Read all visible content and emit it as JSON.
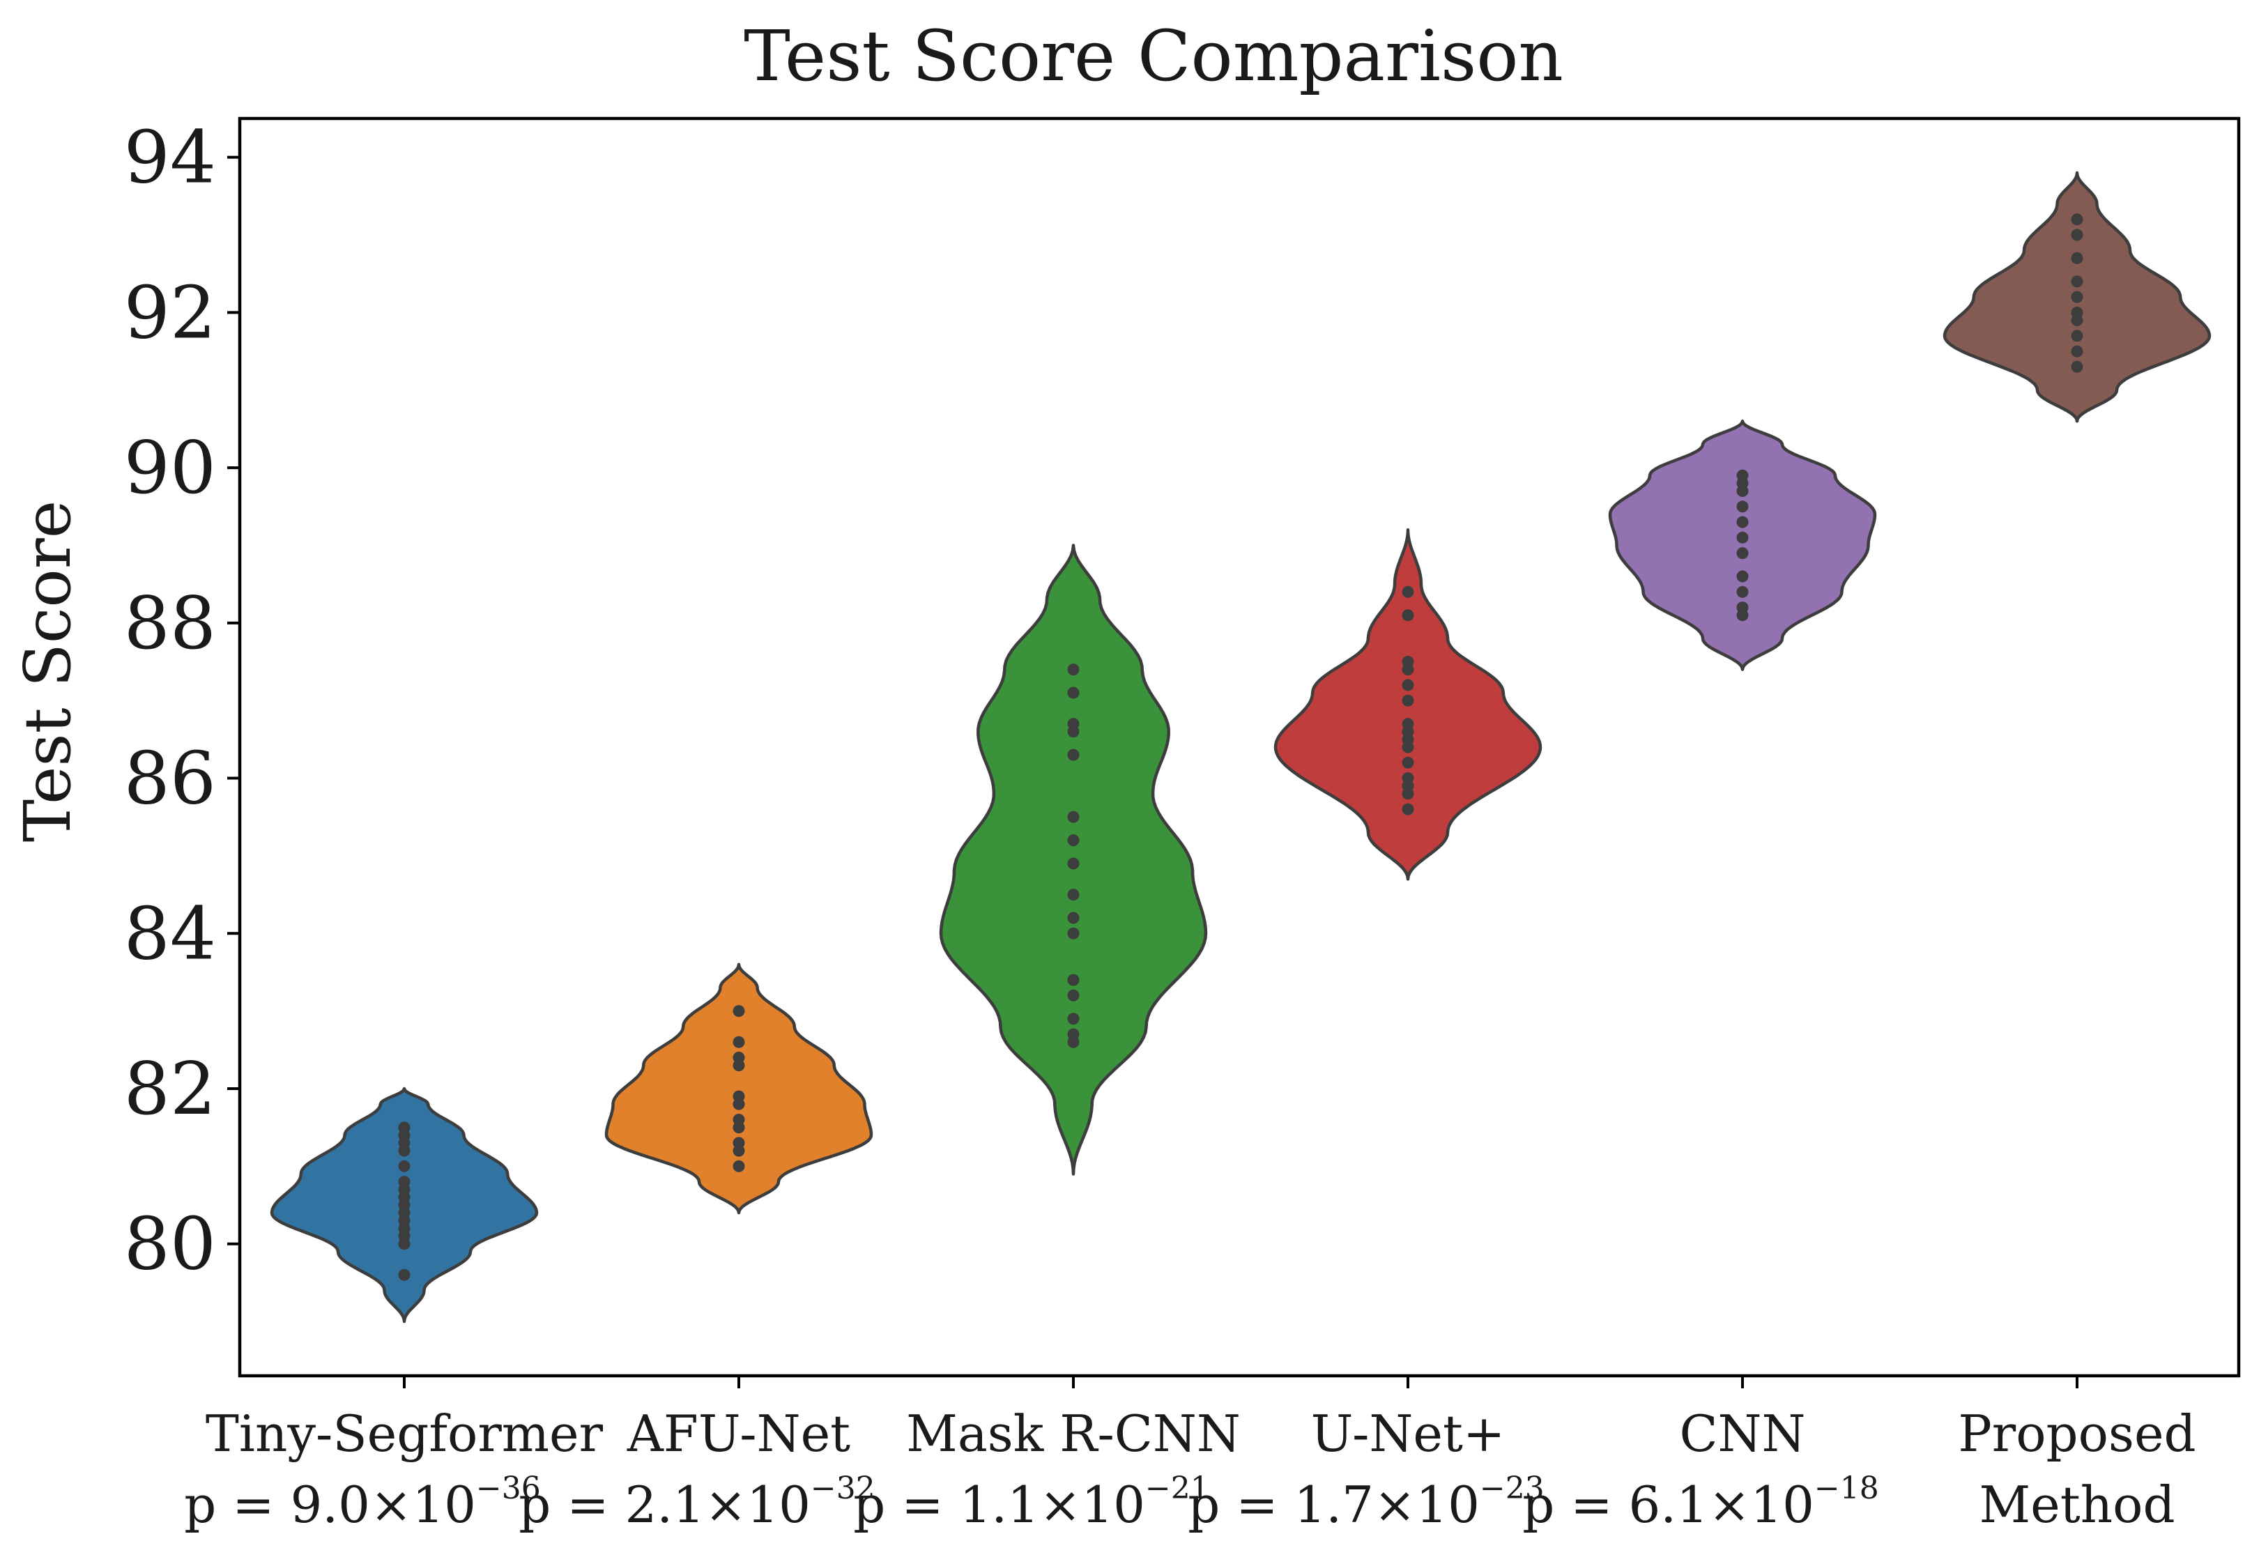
{
  "chart_data": {
    "type": "violin",
    "title": "Test Score Comparison",
    "xlabel": "",
    "ylabel": "Test Score",
    "ylim": [
      78.3,
      94.5
    ],
    "yticks": [
      "80",
      "82",
      "84",
      "86",
      "88",
      "90",
      "92",
      "94"
    ],
    "grid": false,
    "legend": "none",
    "categories": [
      "Tiny-Segformer",
      "AFU-Net",
      "Mask R-CNN",
      "U-Net+",
      "CNN",
      "Proposed"
    ],
    "category_second_lines": {
      "5": "Method"
    },
    "pvalues": [
      {
        "base": "p = 9.0×10",
        "exp": "−36"
      },
      {
        "base": "p = 2.1×10",
        "exp": "−32"
      },
      {
        "base": "p = 1.1×10",
        "exp": "−21"
      },
      {
        "base": "p = 1.7×10",
        "exp": "−23"
      },
      {
        "base": "p = 6.1×10",
        "exp": "−18"
      },
      null
    ],
    "series": [
      {
        "category": "Tiny-Segformer",
        "color": "#3274a1",
        "range": [
          79.0,
          82.0
        ],
        "profile": [
          [
            79.0,
            0.0
          ],
          [
            79.4,
            0.15
          ],
          [
            79.9,
            0.5
          ],
          [
            80.4,
            1.0
          ],
          [
            80.9,
            0.78
          ],
          [
            81.4,
            0.45
          ],
          [
            81.8,
            0.18
          ],
          [
            82.0,
            0.0
          ]
        ],
        "points": [
          79.6,
          80.0,
          80.1,
          80.2,
          80.3,
          80.4,
          80.5,
          80.6,
          80.7,
          80.8,
          81.0,
          81.2,
          81.3,
          81.4,
          81.5
        ]
      },
      {
        "category": "AFU-Net",
        "color": "#e1812c",
        "range": [
          80.4,
          83.6
        ],
        "profile": [
          [
            80.4,
            0.0
          ],
          [
            80.8,
            0.3
          ],
          [
            81.4,
            1.0
          ],
          [
            81.8,
            0.95
          ],
          [
            82.3,
            0.72
          ],
          [
            82.8,
            0.42
          ],
          [
            83.3,
            0.14
          ],
          [
            83.6,
            0.0
          ]
        ],
        "points": [
          81.0,
          81.2,
          81.3,
          81.5,
          81.6,
          81.8,
          81.9,
          82.3,
          82.4,
          82.6,
          83.0
        ]
      },
      {
        "category": "Mask R-CNN",
        "color": "#3a923a",
        "range": [
          80.9,
          89.0
        ],
        "profile": [
          [
            80.9,
            0.0
          ],
          [
            81.8,
            0.14
          ],
          [
            82.8,
            0.55
          ],
          [
            84.0,
            1.0
          ],
          [
            84.8,
            0.9
          ],
          [
            85.8,
            0.6
          ],
          [
            86.6,
            0.72
          ],
          [
            87.4,
            0.52
          ],
          [
            88.3,
            0.2
          ],
          [
            89.0,
            0.0
          ]
        ],
        "points": [
          82.6,
          82.7,
          82.9,
          83.2,
          83.4,
          84.0,
          84.2,
          84.5,
          84.9,
          85.2,
          85.5,
          86.3,
          86.6,
          86.7,
          87.1,
          87.4
        ]
      },
      {
        "category": "U-Net+",
        "color": "#c03d3e",
        "range": [
          84.7,
          89.2
        ],
        "profile": [
          [
            84.7,
            0.0
          ],
          [
            85.3,
            0.3
          ],
          [
            86.4,
            1.0
          ],
          [
            87.1,
            0.72
          ],
          [
            87.8,
            0.3
          ],
          [
            88.5,
            0.1
          ],
          [
            89.2,
            0.0
          ]
        ],
        "points": [
          85.6,
          85.8,
          85.9,
          86.0,
          86.2,
          86.4,
          86.5,
          86.6,
          86.7,
          87.0,
          87.2,
          87.4,
          87.5,
          88.1,
          88.4
        ]
      },
      {
        "category": "CNN",
        "color": "#9372b2",
        "range": [
          87.4,
          90.6
        ],
        "profile": [
          [
            87.4,
            0.0
          ],
          [
            87.8,
            0.3
          ],
          [
            88.4,
            0.75
          ],
          [
            89.0,
            0.95
          ],
          [
            89.4,
            1.0
          ],
          [
            89.9,
            0.7
          ],
          [
            90.3,
            0.3
          ],
          [
            90.6,
            0.0
          ]
        ],
        "points": [
          88.1,
          88.2,
          88.4,
          88.6,
          88.9,
          89.1,
          89.3,
          89.5,
          89.7,
          89.8,
          89.9
        ]
      },
      {
        "category": "Proposed",
        "color": "#845b53",
        "range": [
          90.6,
          93.8
        ],
        "profile": [
          [
            90.6,
            0.0
          ],
          [
            91.0,
            0.3
          ],
          [
            91.7,
            1.0
          ],
          [
            92.2,
            0.78
          ],
          [
            92.8,
            0.4
          ],
          [
            93.4,
            0.15
          ],
          [
            93.8,
            0.0
          ]
        ],
        "points": [
          91.3,
          91.5,
          91.7,
          91.9,
          92.0,
          92.2,
          92.4,
          92.7,
          93.0,
          93.2
        ]
      }
    ]
  }
}
